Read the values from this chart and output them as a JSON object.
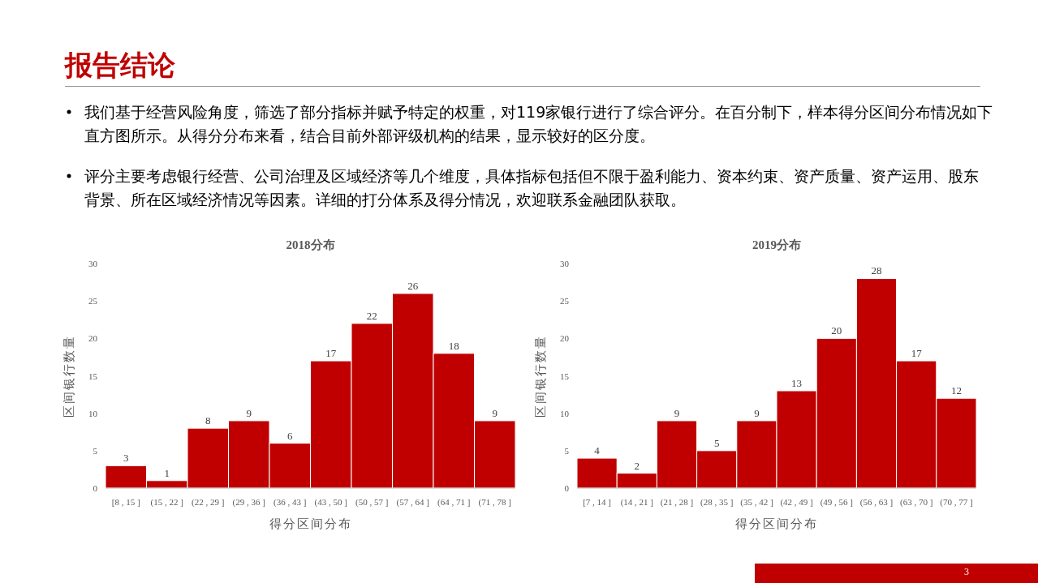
{
  "chart_data": [
    {
      "type": "other",
      "title": "报告结论",
      "annotations": [
        "我们基于经营风险角度，筛选了部分指标并赋予特定的权重，对119家银行进行了综合评分。在百分制下，样本得分区间分布情况如下直方图所示。从得分分布来看，结合目前外部评级机构的结果，显示较好的区分度。",
        "评分主要考虑银行经营、公司治理及区域经济等几个维度，具体指标包括但不限于盈利能力、资本约束、资产质量、资产运用、股东背景、所在区域经济情况等因素。详细的打分体系及得分情况，欢迎联系金融团队获取。",
        "3"
      ]
    },
    {
      "type": "bar",
      "title": "2018分布",
      "xlabel": "得分区间分布",
      "ylabel": "区间银行数量",
      "categories": [
        "[8 , 15 ]",
        "(15 , 22 ]",
        "(22 , 29 ]",
        "(29 , 36 ]",
        "(36 , 43 ]",
        "(43 , 50 ]",
        "(50 , 57 ]",
        "(57 , 64 ]",
        "(64 , 71 ]",
        "(71 , 78 ]"
      ],
      "values": [
        3,
        1,
        8,
        9,
        6,
        17,
        22,
        26,
        18,
        9
      ],
      "color": "#c00000",
      "ylim": [
        0,
        30
      ],
      "yticks": [
        0,
        5,
        10,
        15,
        20,
        25,
        30
      ],
      "data_labels": true
    },
    {
      "type": "bar",
      "title": "2019分布",
      "xlabel": "得分区间分布",
      "ylabel": "区间银行数量",
      "categories": [
        "[7 , 14 ]",
        "(14 , 21 ]",
        "(21 , 28 ]",
        "(28 , 35 ]",
        "(35 , 42 ]",
        "(42 , 49 ]",
        "(49 , 56 ]",
        "(56 , 63 ]",
        "(63 , 70 ]",
        "(70 , 77 ]"
      ],
      "values": [
        4,
        2,
        9,
        5,
        9,
        13,
        20,
        28,
        17,
        12
      ],
      "color": "#c00000",
      "ylim": [
        0,
        30
      ],
      "yticks": [
        0,
        5,
        10,
        15,
        20,
        25,
        30
      ],
      "data_labels": true
    }
  ]
}
